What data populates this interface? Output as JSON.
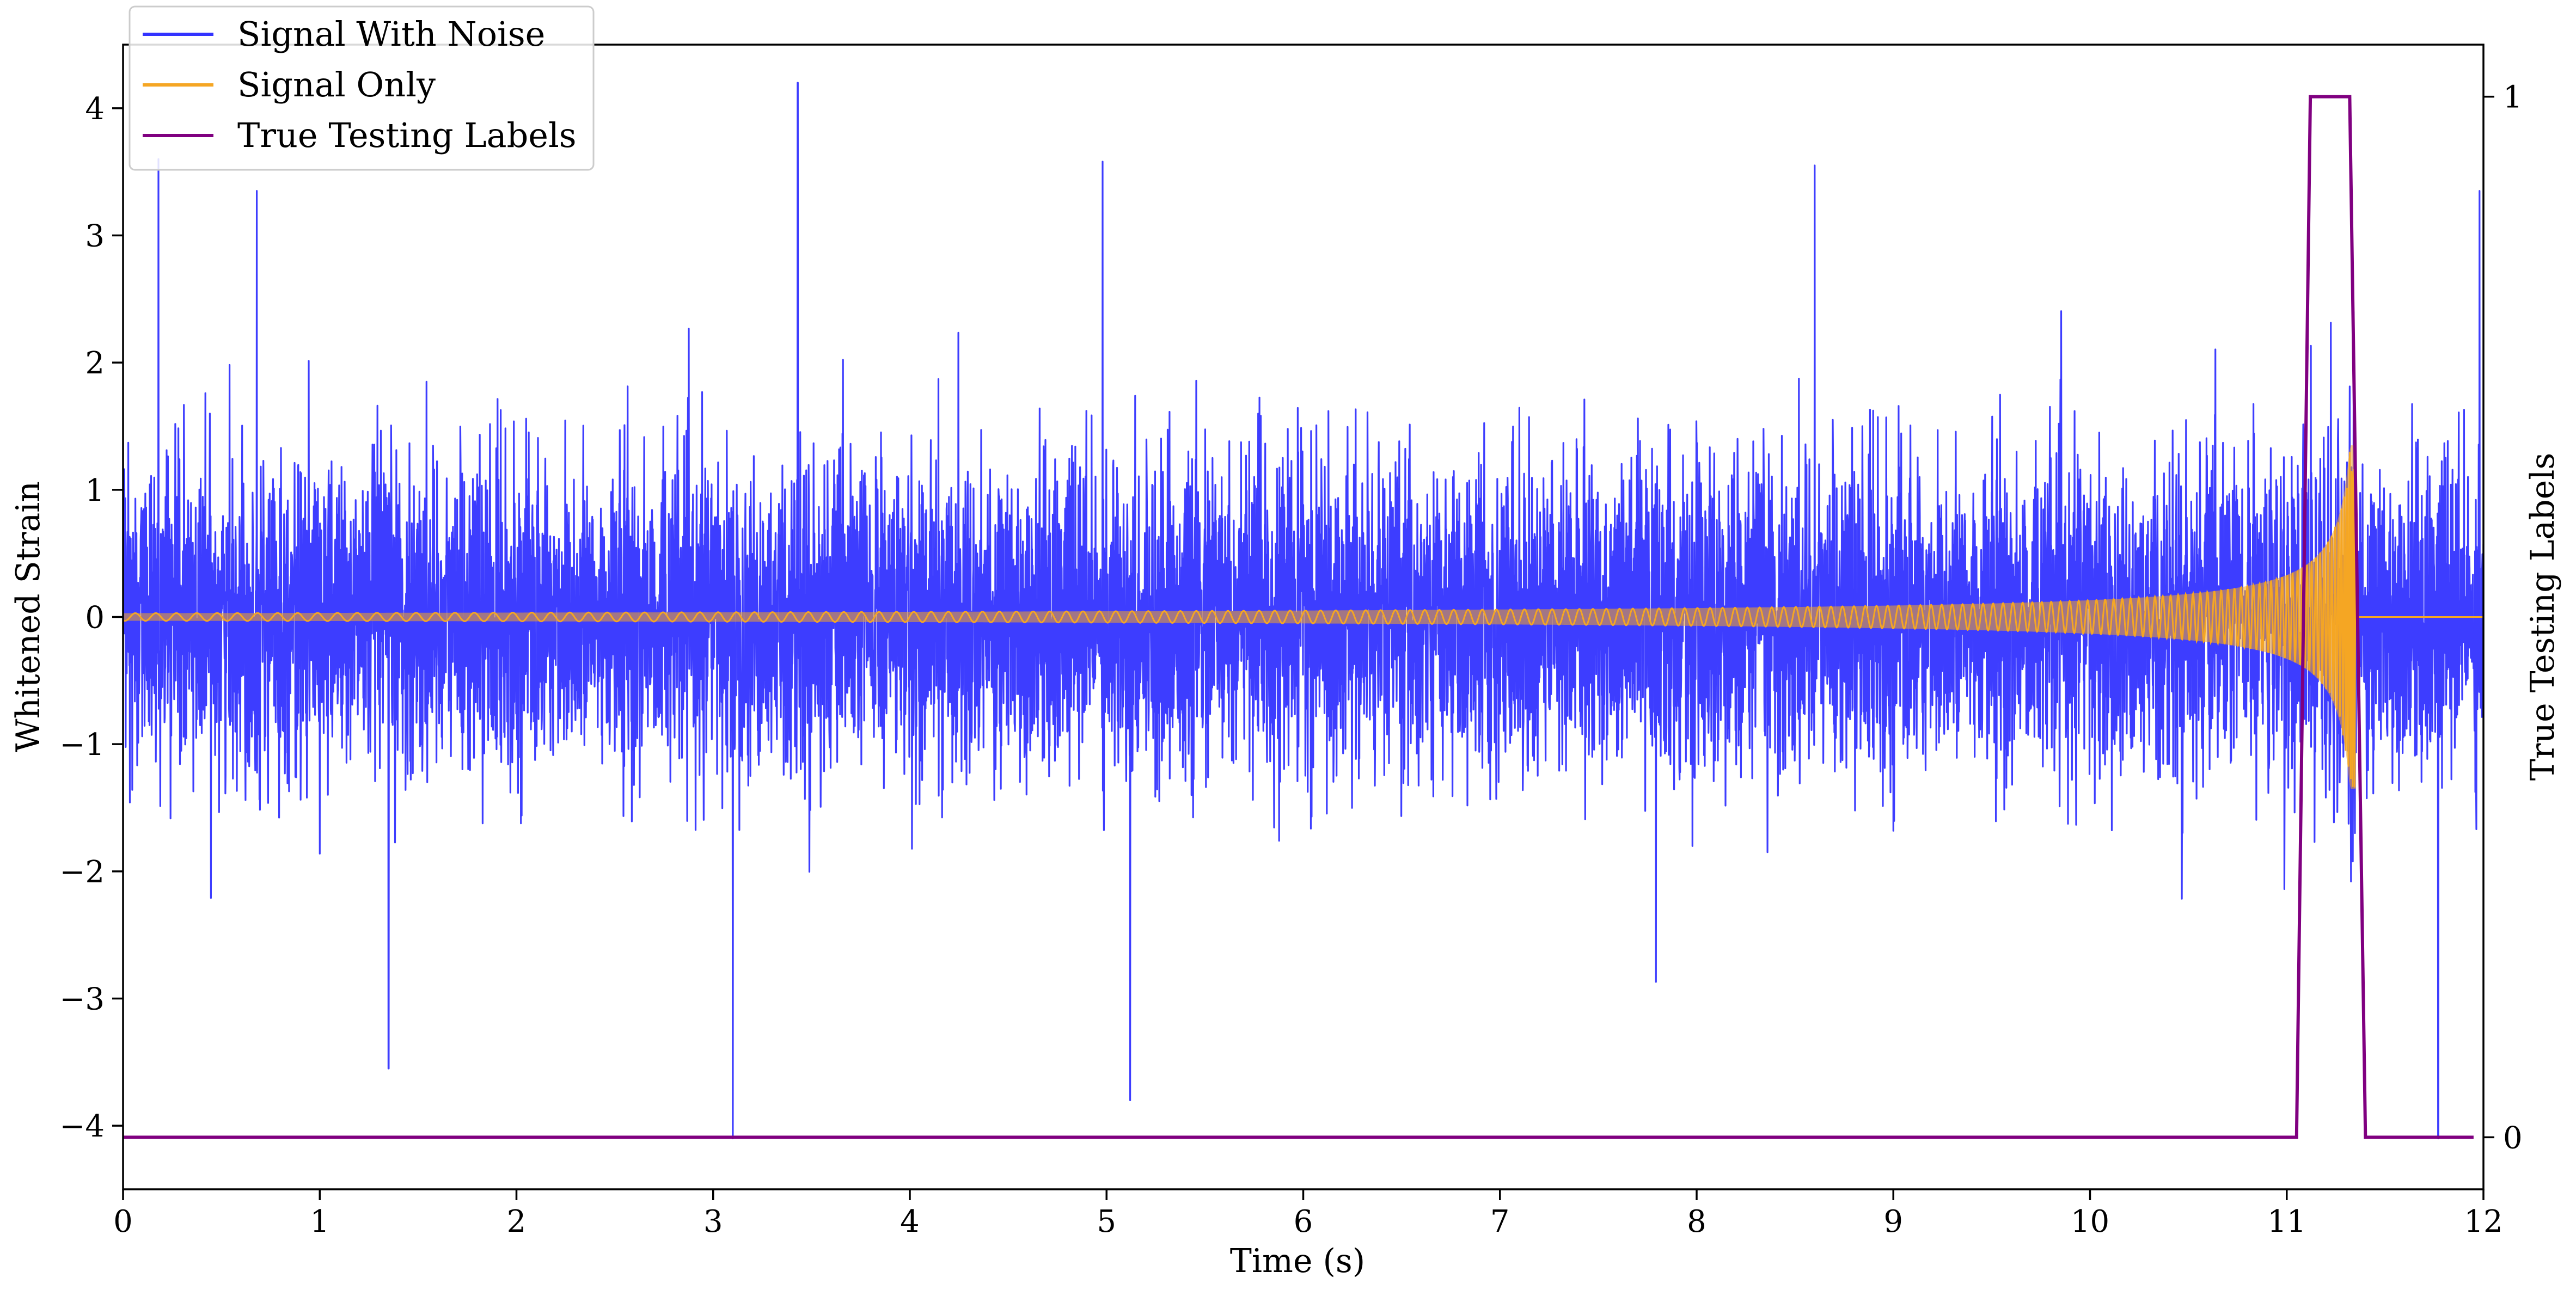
{
  "chart_data": {
    "type": "line",
    "xlabel": "Time (s)",
    "ylabel": "Whitened Strain",
    "y2label": "True Testing Labels",
    "xlim": [
      0,
      12
    ],
    "ylim": [
      -4.5,
      4.5
    ],
    "y2lim": [
      -0.05,
      1.05
    ],
    "x_ticks": [
      0,
      1,
      2,
      3,
      4,
      5,
      6,
      7,
      8,
      9,
      10,
      11,
      12
    ],
    "y_ticks": [
      -4,
      -3,
      -2,
      -1,
      0,
      1,
      2,
      3,
      4
    ],
    "y2_ticks": [
      0,
      1
    ],
    "grid": false,
    "legend_position": "top-left",
    "series": [
      {
        "name": "Signal With Noise",
        "axis": "left",
        "color": "#3333ff",
        "description_points": {
          "noise_std": 0.6,
          "spikes": [
            [
              0.18,
              3.6
            ],
            [
              0.68,
              3.35
            ],
            [
              1.35,
              -3.55
            ],
            [
              3.1,
              -4.1
            ],
            [
              3.43,
              4.2
            ],
            [
              4.98,
              3.58
            ],
            [
              5.12,
              -3.8
            ],
            [
              8.6,
              3.55
            ],
            [
              11.77,
              -4.1
            ],
            [
              11.98,
              3.35
            ]
          ]
        }
      },
      {
        "name": "Signal Only",
        "axis": "left",
        "color": "#f5a623",
        "chirp": {
          "t_start": 0,
          "t_merge": 11.35,
          "amp_start": 0.03,
          "amp_peak": 1.35,
          "f_start": 10,
          "f_end": 100
        }
      },
      {
        "name": "True Testing Labels",
        "axis": "right",
        "color": "#800080",
        "x": [
          0,
          11.05,
          11.12,
          11.32,
          11.4,
          11.95
        ],
        "values": [
          0,
          0,
          1,
          1,
          0,
          0
        ]
      }
    ]
  }
}
